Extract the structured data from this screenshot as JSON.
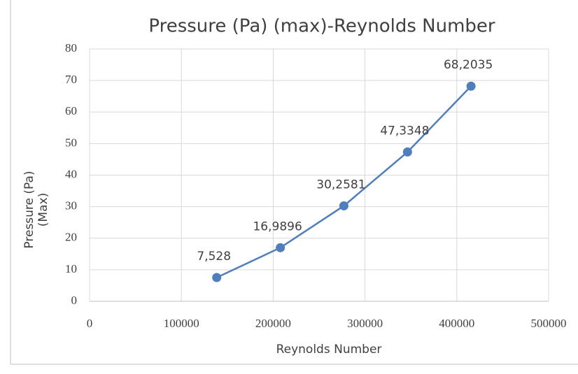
{
  "chart_data": {
    "type": "line",
    "title": "Pressure (Pa) (max)-Reynolds Number",
    "x_label": "Reynolds Number",
    "y_label": [
      "Pressure (Pa)",
      "(Max)"
    ],
    "x": [
      138500,
      207800,
      277000,
      346300,
      415500
    ],
    "series": [
      {
        "color": "#4e7ebb",
        "values": [
          7.528,
          16.9896,
          30.2581,
          47.3348,
          68.2035
        ],
        "value_labels": [
          "7,528",
          "16,9896",
          "30,2581",
          "47,3348",
          "68,2035"
        ]
      }
    ],
    "xlim": [
      0,
      500000
    ],
    "xticks": [
      0,
      100000,
      200000,
      300000,
      400000,
      500000
    ],
    "ylim": [
      0,
      80
    ],
    "yticks": [
      0,
      10,
      20,
      30,
      40,
      50,
      60,
      70,
      80
    ],
    "grid": true
  }
}
